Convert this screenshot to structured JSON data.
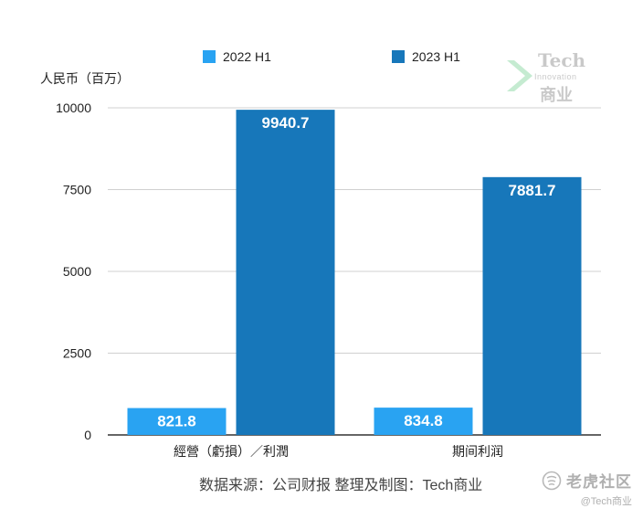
{
  "chart_data": {
    "type": "bar",
    "categories": [
      "經營（虧損）／利潤",
      "期间利润"
    ],
    "series": [
      {
        "name": "2022 H1",
        "color": "#29a3f2",
        "values": [
          821.8,
          834.8
        ]
      },
      {
        "name": "2023 H1",
        "color": "#1777ba",
        "values": [
          9940.7,
          7881.7
        ]
      }
    ],
    "data_labels": [
      "821.8",
      "834.8",
      "9940.7",
      "7881.7"
    ],
    "ylabel": "人民币（百万）",
    "yticks": [
      0,
      2500,
      5000,
      7500,
      10000
    ],
    "ylim": [
      0,
      10000
    ],
    "grid": true,
    "legend_position": "top"
  },
  "source_text": "数据来源：公司财报 整理及制图：Tech商业",
  "watermark": {
    "line1": "Tech",
    "line2": "Innovation",
    "line3": "商业"
  },
  "corner": {
    "brand": "老虎社区",
    "handle": "@Tech商业",
    "icon": "tiger-logo-icon"
  }
}
